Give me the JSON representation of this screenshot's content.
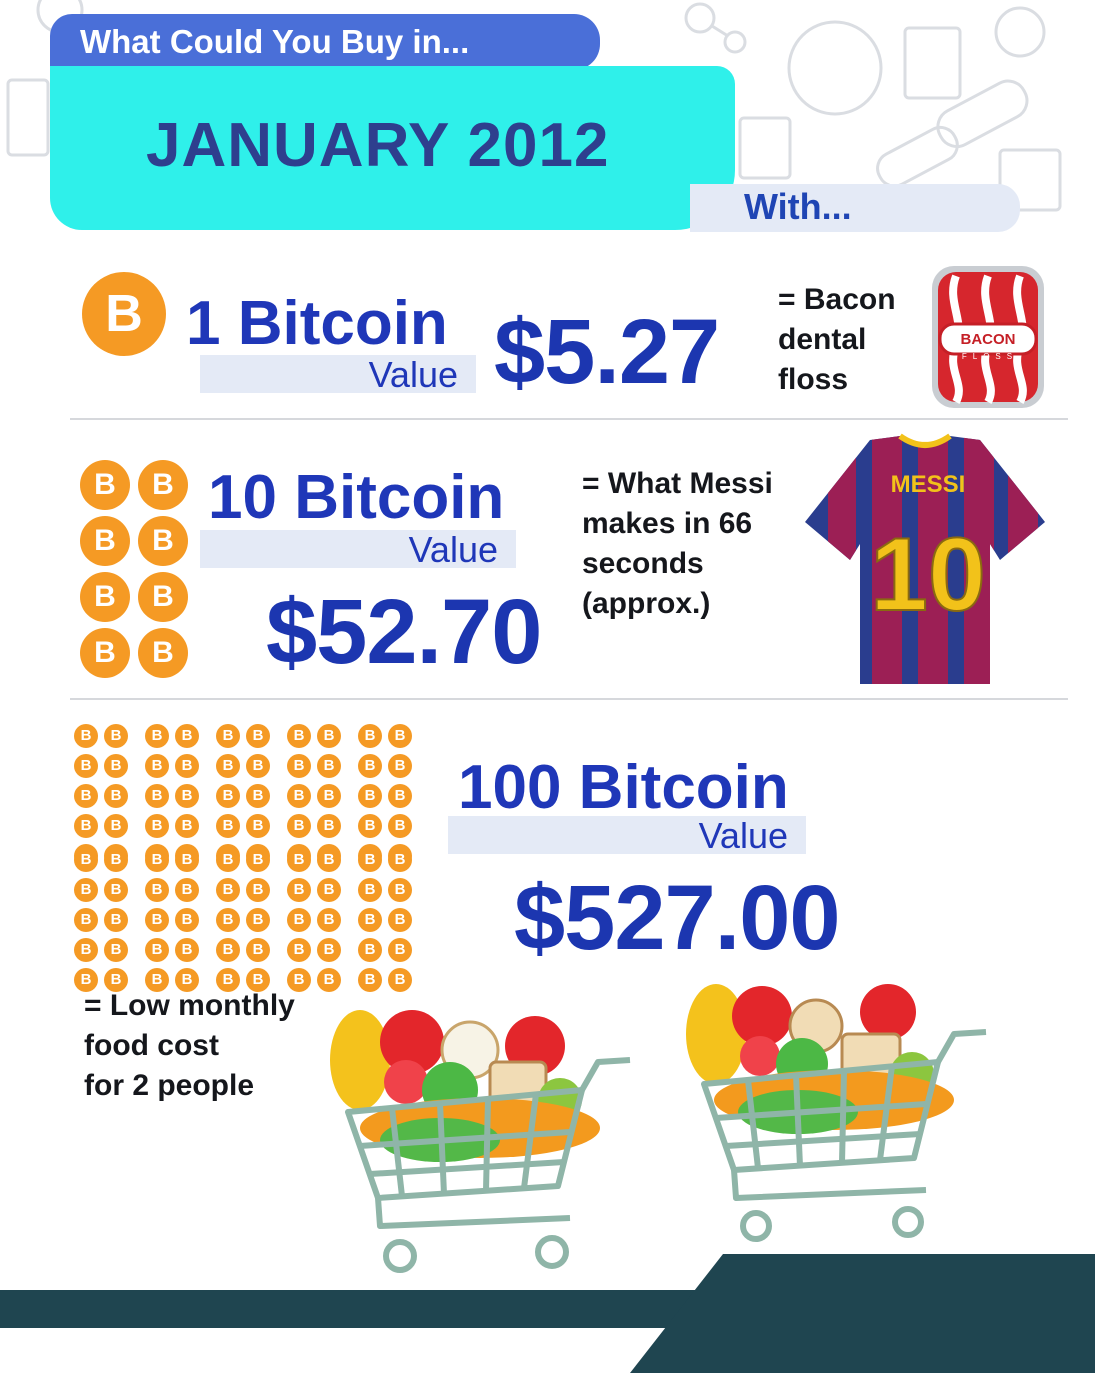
{
  "header": {
    "kicker": "What Could You Buy in...",
    "date": "JANUARY 2012",
    "with": "With..."
  },
  "coin_symbol": "B",
  "rows": [
    {
      "amount": "1 Bitcoin",
      "value_label": "Value",
      "price": "$5.27",
      "description_lines": [
        "= Bacon",
        "dental",
        "floss"
      ],
      "item_icon": "bacon-floss-package-icon",
      "product_brand": "BACON",
      "product_sub": "FLOSS",
      "coin_count": 1
    },
    {
      "amount": "10 Bitcoin",
      "value_label": "Value",
      "price": "$52.70",
      "description_lines": [
        "= What Messi",
        "makes in 66",
        "seconds",
        "(approx.)"
      ],
      "item_icon": "messi-jersey-icon",
      "jersey_name": "MESSI",
      "jersey_number": "10",
      "coin_count": 8
    },
    {
      "amount": "100 Bitcoin",
      "value_label": "Value",
      "price": "$527.00",
      "description_lines": [
        "= Low monthly",
        "food cost",
        "for 2 people"
      ],
      "item_icon": "grocery-cart-icon",
      "coin_count": 100
    }
  ],
  "colors": {
    "coin": "#f59a24",
    "blue_text": "#1f37b8",
    "header_band": "#2ff0ea",
    "kicker_band": "#4a6fd8",
    "ground": "#1f4550"
  }
}
